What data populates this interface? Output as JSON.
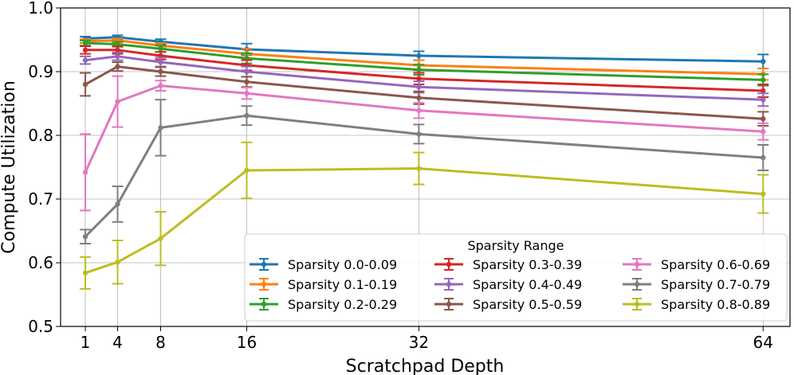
{
  "chart_data": {
    "type": "line",
    "title": "",
    "xlabel": "Scratchpad Depth",
    "ylabel": "Compute Utilization",
    "x": [
      1,
      4,
      8,
      16,
      32,
      64
    ],
    "x_tick_labels": [
      "1",
      "4",
      "8",
      "16",
      "32",
      "64"
    ],
    "xlim": [
      -1.3,
      66.5
    ],
    "ylim": [
      0.5,
      1.0
    ],
    "y_ticks": [
      0.5,
      0.6,
      0.7,
      0.8,
      0.9,
      1.0
    ],
    "y_tick_labels": [
      "0.5",
      "0.6",
      "0.7",
      "0.8",
      "0.9",
      "1.0"
    ],
    "grid": true,
    "legend": {
      "title": "Sparsity Range",
      "location": "lower-right",
      "columns": 3
    },
    "series": [
      {
        "name": "Sparsity 0.0-0.09",
        "color": "#1f77b4",
        "values": [
          0.952,
          0.954,
          0.947,
          0.935,
          0.925,
          0.916
        ],
        "errors": [
          0.003,
          0.003,
          0.004,
          0.009,
          0.007,
          0.011
        ]
      },
      {
        "name": "Sparsity 0.1-0.19",
        "color": "#ff7f0e",
        "values": [
          0.948,
          0.949,
          0.941,
          0.928,
          0.91,
          0.896
        ],
        "errors": [
          0.003,
          0.003,
          0.004,
          0.008,
          0.008,
          0.009
        ]
      },
      {
        "name": "Sparsity 0.2-0.29",
        "color": "#2ca02c",
        "values": [
          0.945,
          0.943,
          0.936,
          0.921,
          0.903,
          0.887
        ],
        "errors": [
          0.004,
          0.004,
          0.005,
          0.008,
          0.008,
          0.009
        ]
      },
      {
        "name": "Sparsity 0.3-0.39",
        "color": "#d62728",
        "values": [
          0.934,
          0.934,
          0.925,
          0.91,
          0.889,
          0.87
        ],
        "errors": [
          0.006,
          0.006,
          0.006,
          0.008,
          0.009,
          0.01
        ]
      },
      {
        "name": "Sparsity 0.4-0.49",
        "color": "#9467bd",
        "values": [
          0.918,
          0.924,
          0.915,
          0.9,
          0.876,
          0.856
        ],
        "errors": [
          0.006,
          0.006,
          0.007,
          0.008,
          0.009,
          0.01
        ]
      },
      {
        "name": "Sparsity 0.5-0.59",
        "color": "#8c564b",
        "values": [
          0.88,
          0.908,
          0.9,
          0.884,
          0.859,
          0.826
        ],
        "errors": [
          0.018,
          0.007,
          0.007,
          0.008,
          0.01,
          0.011
        ]
      },
      {
        "name": "Sparsity 0.6-0.69",
        "color": "#e377c2",
        "values": [
          0.742,
          0.853,
          0.878,
          0.866,
          0.839,
          0.806
        ],
        "errors": [
          0.06,
          0.04,
          0.008,
          0.009,
          0.012,
          0.013
        ]
      },
      {
        "name": "Sparsity 0.7-0.79",
        "color": "#7f7f7f",
        "values": [
          0.641,
          0.692,
          0.812,
          0.831,
          0.802,
          0.765
        ],
        "errors": [
          0.011,
          0.028,
          0.044,
          0.015,
          0.015,
          0.02
        ]
      },
      {
        "name": "Sparsity 0.8-0.89",
        "color": "#bcbd22",
        "values": [
          0.584,
          0.601,
          0.638,
          0.745,
          0.748,
          0.708
        ],
        "errors": [
          0.025,
          0.034,
          0.042,
          0.044,
          0.025,
          0.03
        ]
      }
    ]
  }
}
